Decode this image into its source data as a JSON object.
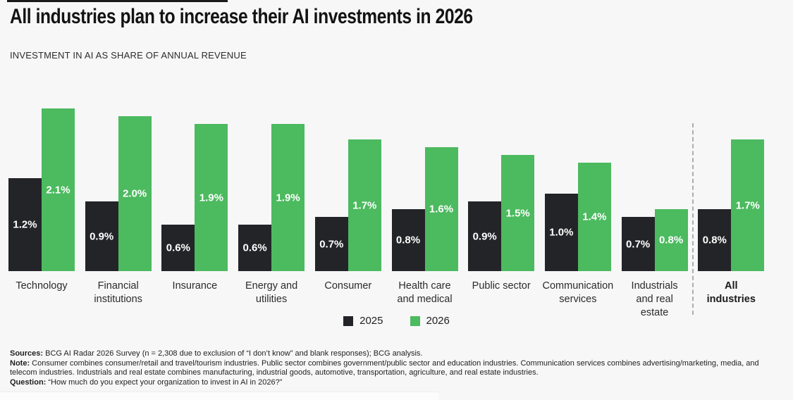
{
  "header": {
    "title": "All industries plan to increase their AI investments in 2026",
    "subtitle": "INVESTMENT IN AI AS SHARE OF ANNUAL REVENUE"
  },
  "chart_data": {
    "type": "bar",
    "title": "All industries plan to increase their AI investments in 2026",
    "subtitle": "INVESTMENT IN AI AS SHARE OF ANNUAL REVENUE",
    "categories": [
      "Technology",
      "Financial institutions",
      "Insurance",
      "Energy and utilities",
      "Consumer",
      "Health care and medical",
      "Public sector",
      "Communication services",
      "Industrials and real estate",
      "All industries"
    ],
    "category_lines": [
      [
        "Technology"
      ],
      [
        "Financial",
        "institutions"
      ],
      [
        "Insurance"
      ],
      [
        "Energy and",
        "utilities"
      ],
      [
        "Consumer"
      ],
      [
        "Health care",
        "and medical"
      ],
      [
        "Public sector"
      ],
      [
        "Communication",
        "services"
      ],
      [
        "Industrials",
        "and real",
        "estate"
      ],
      [
        "All",
        "industries"
      ]
    ],
    "series": [
      {
        "name": "2025",
        "color": "#232428",
        "values": [
          1.2,
          0.9,
          0.6,
          0.6,
          0.7,
          0.8,
          0.9,
          1.0,
          0.7,
          0.8
        ]
      },
      {
        "name": "2026",
        "color": "#4cba5f",
        "values": [
          2.1,
          2.0,
          1.9,
          1.9,
          1.7,
          1.6,
          1.5,
          1.4,
          0.8,
          1.7
        ]
      }
    ],
    "value_suffix": "%",
    "xlabel": "",
    "ylabel": "",
    "ylim": [
      0,
      2.3
    ],
    "grid": false,
    "value_labels": "inside-center",
    "legend_position": "bottom-center",
    "divider_before_category": "All industries",
    "background": "#f7f7f8"
  },
  "footer": {
    "sources_label": "Sources:",
    "sources_text": " BCG AI Radar 2026 Survey (n = 2,308 due to exclusion of “I don’t know” and blank responses); BCG analysis.",
    "note_label": "Note:",
    "note_text": " Consumer combines consumer/retail and travel/tourism industries. Public sector combines government/public sector and education industries. Communication services combines advertising/marketing, media, and telecom industries. Industrials and real estate combines manufacturing, industrial goods, automotive, transportation, agriculture, and real estate industries.",
    "question_label": "Question:",
    "question_text": " “How much do you expect your organization to invest in AI in 2026?”"
  }
}
